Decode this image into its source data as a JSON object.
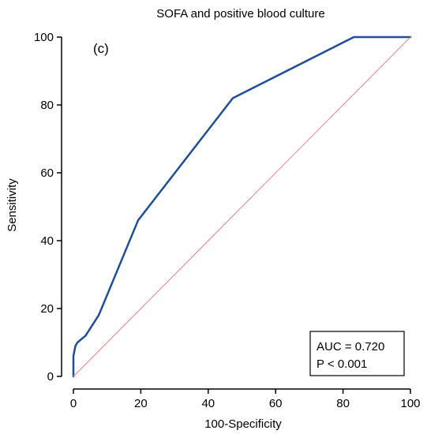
{
  "chart_data": {
    "type": "line",
    "title": "SOFA and positive blood culture",
    "panel_label": "(c)",
    "xlabel": "100-Specificity",
    "ylabel": "Sensitivity",
    "xlim": [
      0,
      100
    ],
    "ylim": [
      0,
      100
    ],
    "xticks": [
      0,
      20,
      40,
      60,
      80,
      100
    ],
    "yticks": [
      0,
      20,
      40,
      60,
      80,
      100
    ],
    "grid": false,
    "series": [
      {
        "color": "#1f4e9a",
        "x": [
          0,
          0,
          0.6,
          1.2,
          3.6,
          7.5,
          19.2,
          47.3,
          83.2,
          100
        ],
        "y": [
          0,
          6,
          9,
          10,
          12,
          18,
          46,
          82,
          100,
          100
        ]
      },
      {
        "color": "#f08080",
        "x": [
          0,
          100
        ],
        "y": [
          0,
          100
        ]
      }
    ],
    "annotation": {
      "line1": "AUC = 0.720",
      "line2": "P < 0.001",
      "placement": "bottom-right"
    }
  },
  "colors": {
    "roc_curve": "#1f4e9a",
    "reference_line": "#f08080",
    "axes": "#000000",
    "background": "#ffffff"
  }
}
